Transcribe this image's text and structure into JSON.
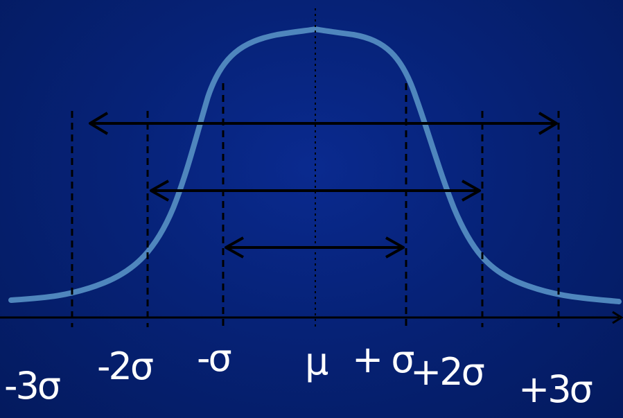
{
  "colors": {
    "background": "#062277",
    "curve": "#4f86bd",
    "lines": "#000000",
    "labels": "#ffffff"
  },
  "diagram": {
    "type": "normal-distribution",
    "labels": {
      "minus3": "-3σ",
      "minus2": "-2σ",
      "minus1": "-σ",
      "mean": "μ",
      "plus1": "+ σ",
      "plus2": "+2σ",
      "plus3": "+3σ"
    },
    "ranges": [
      {
        "name": "one-sigma",
        "from": -1,
        "to": 1
      },
      {
        "name": "two-sigma",
        "from": -2,
        "to": 2
      },
      {
        "name": "three-sigma",
        "from": -3,
        "to": 3
      }
    ]
  }
}
